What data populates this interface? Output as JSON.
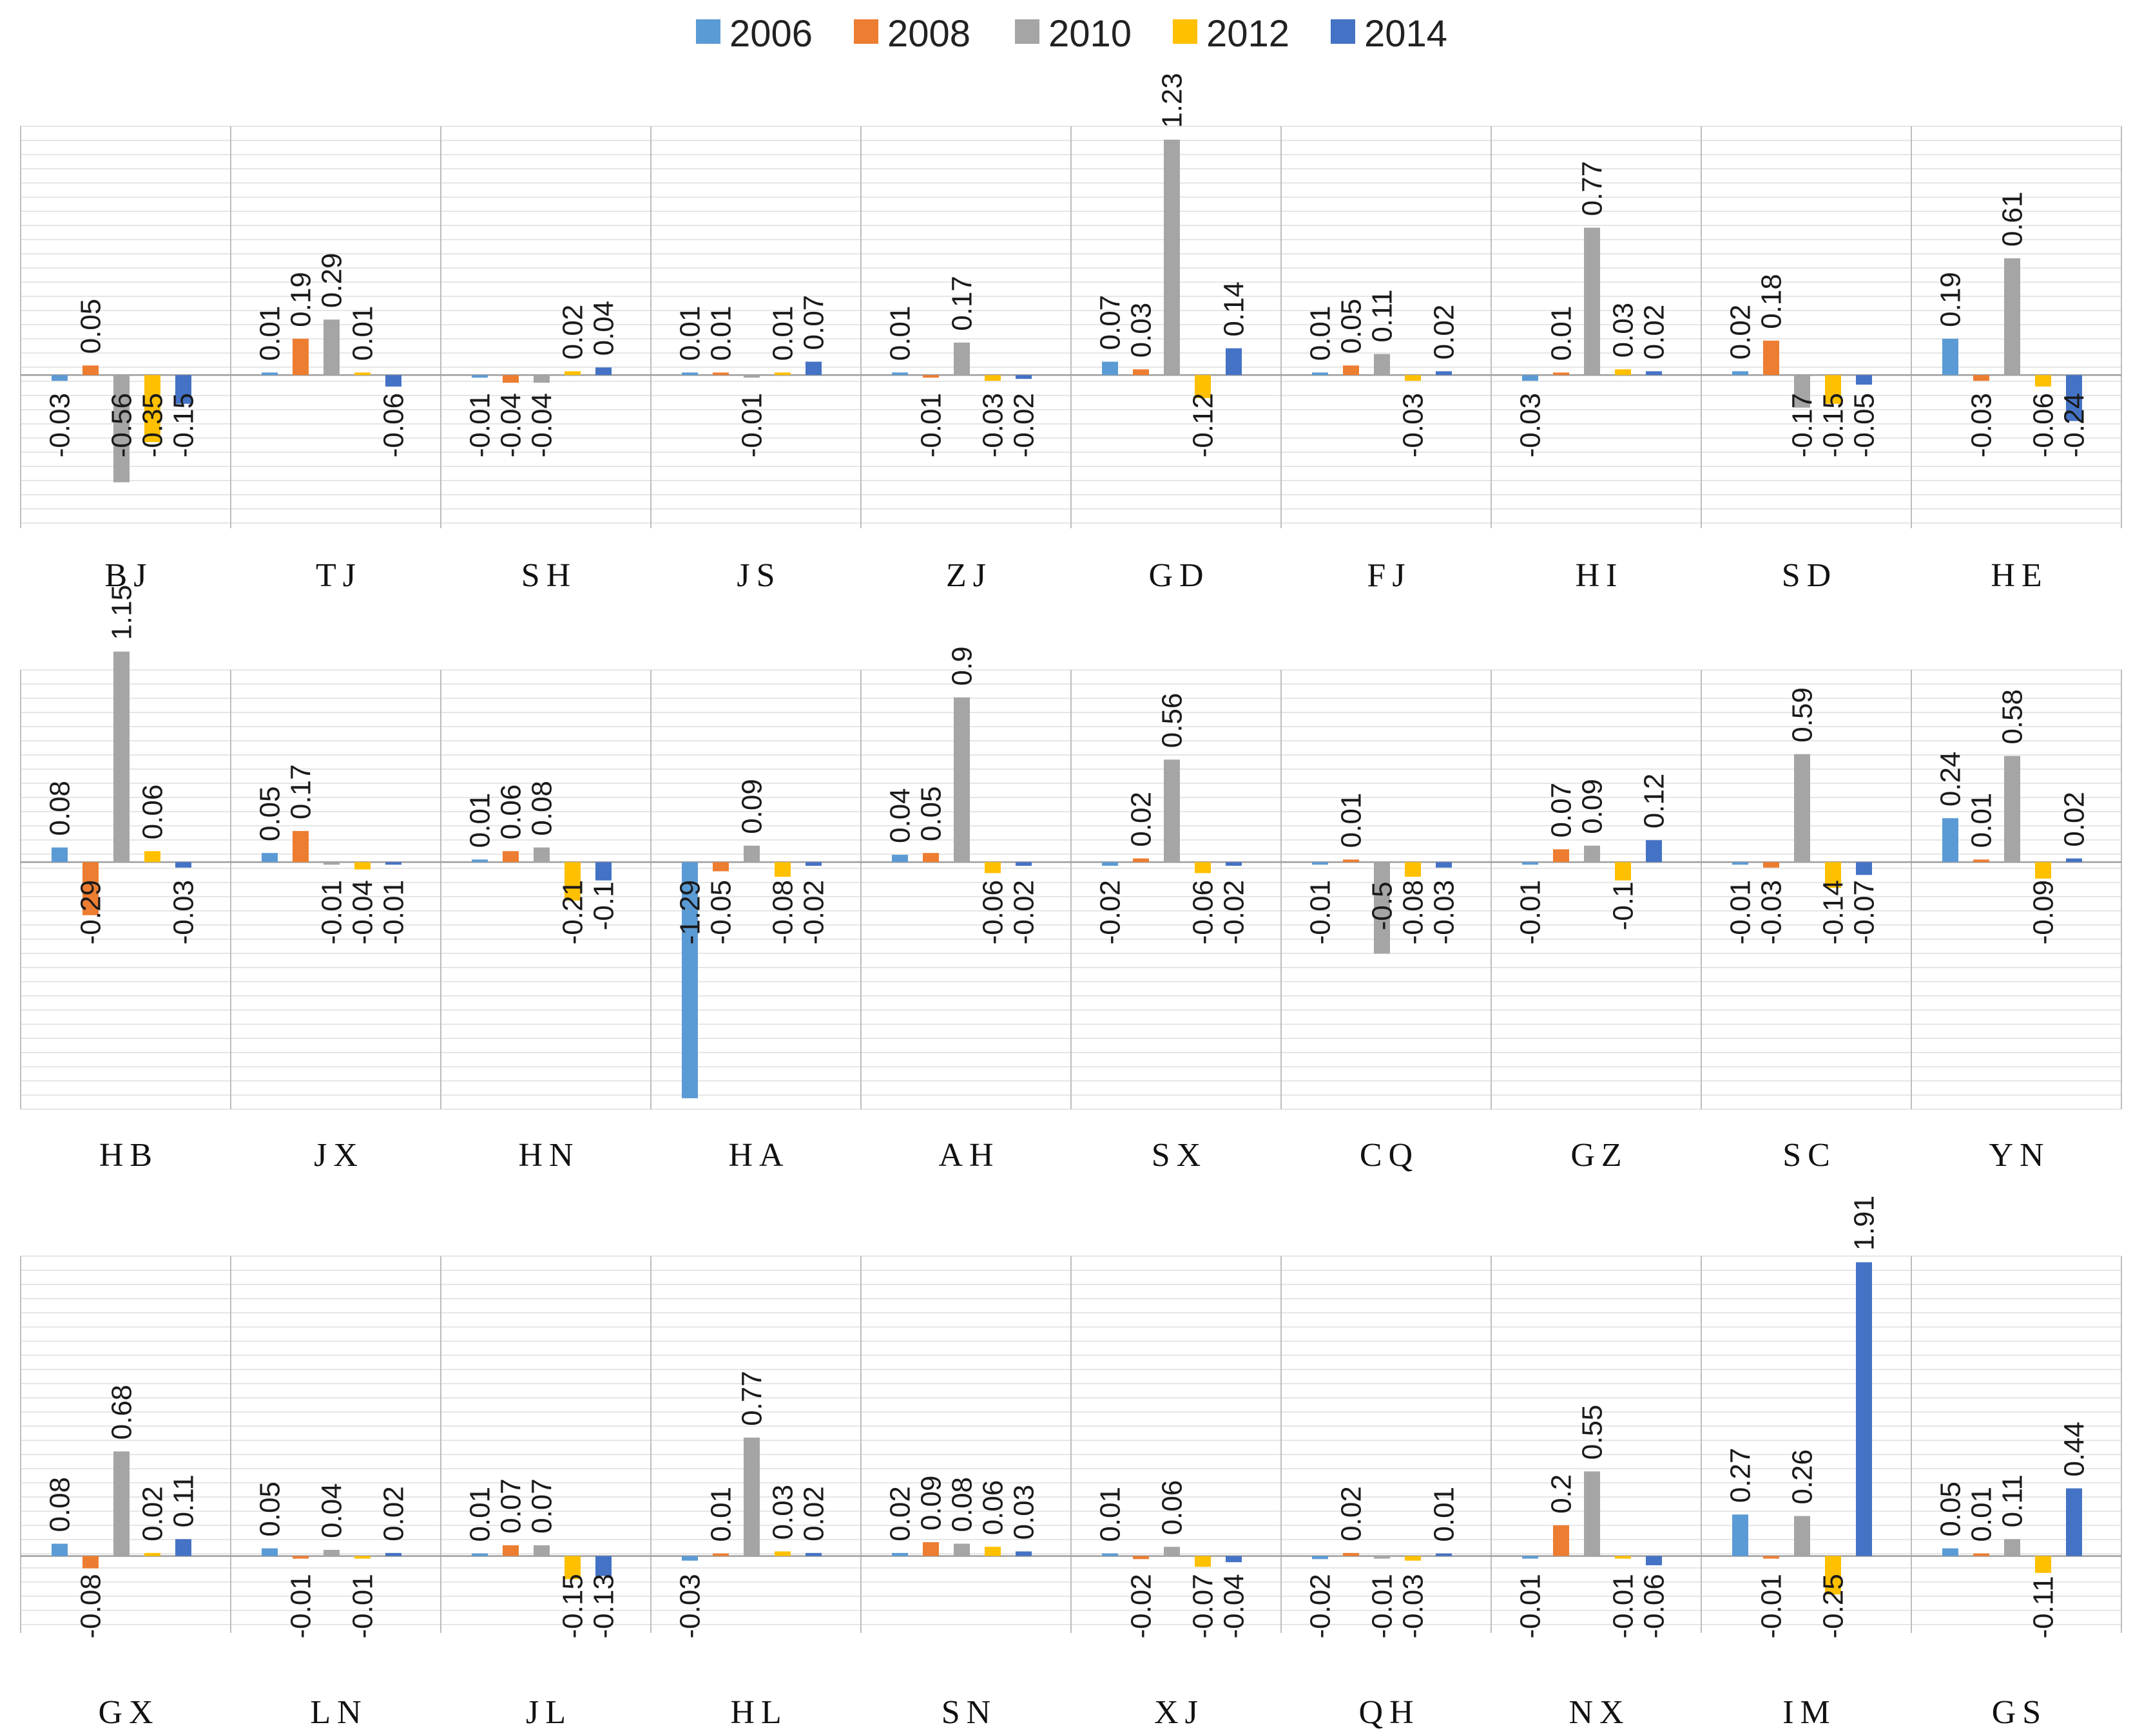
{
  "chart_data": {
    "type": "bar",
    "title": "",
    "xlabel": "",
    "ylabel": "",
    "grid": true,
    "legend_position": "top-center",
    "series": [
      {
        "name": "2006",
        "color": "#5B9BD5"
      },
      {
        "name": "2008",
        "color": "#ED7D31"
      },
      {
        "name": "2010",
        "color": "#A5A5A5"
      },
      {
        "name": "2012",
        "color": "#FFC000"
      },
      {
        "name": "2014",
        "color": "#4472C4"
      }
    ],
    "rows": [
      {
        "ylim": [
          -0.8,
          1.3
        ],
        "panels": [
          {
            "label": "BJ",
            "values": [
              -0.03,
              0.05,
              -0.56,
              -0.35,
              -0.15
            ]
          },
          {
            "label": "TJ",
            "values": [
              0.01,
              0.19,
              0.29,
              0.01,
              -0.06
            ]
          },
          {
            "label": "SH",
            "values": [
              -0.01,
              -0.04,
              -0.04,
              0.02,
              0.04
            ]
          },
          {
            "label": "JS",
            "values": [
              0.01,
              0.01,
              -0.01,
              0.01,
              0.07
            ]
          },
          {
            "label": "ZJ",
            "values": [
              0.01,
              -0.01,
              0.17,
              -0.03,
              -0.02
            ]
          },
          {
            "label": "GD",
            "values": [
              0.07,
              0.03,
              1.23,
              -0.12,
              0.14
            ]
          },
          {
            "label": "FJ",
            "values": [
              0.01,
              0.05,
              0.11,
              -0.03,
              0.02
            ]
          },
          {
            "label": "HI",
            "values": [
              -0.03,
              0.01,
              0.77,
              0.03,
              0.02
            ]
          },
          {
            "label": "SD",
            "values": [
              0.02,
              0.18,
              -0.17,
              -0.15,
              -0.05
            ]
          },
          {
            "label": "HE",
            "values": [
              0.19,
              -0.03,
              0.61,
              -0.06,
              -0.24
            ]
          }
        ]
      },
      {
        "ylim": [
          -1.35,
          1.05
        ],
        "panels": [
          {
            "label": "HB",
            "values": [
              0.08,
              -0.29,
              1.15,
              0.06,
              -0.03
            ]
          },
          {
            "label": "JX",
            "values": [
              0.05,
              0.17,
              -0.01,
              -0.04,
              -0.01
            ]
          },
          {
            "label": "HN",
            "values": [
              0.01,
              0.06,
              0.08,
              -0.21,
              -0.1
            ]
          },
          {
            "label": "HA",
            "values": [
              -1.29,
              -0.05,
              0.09,
              -0.08,
              -0.02
            ]
          },
          {
            "label": "AH",
            "values": [
              0.04,
              0.05,
              0.9,
              -0.06,
              -0.02
            ]
          },
          {
            "label": "SX",
            "values": [
              -0.02,
              0.02,
              0.56,
              -0.06,
              -0.02
            ]
          },
          {
            "label": "CQ",
            "values": [
              -0.01,
              0.01,
              -0.5,
              -0.08,
              -0.03
            ]
          },
          {
            "label": "GZ",
            "values": [
              -0.01,
              0.07,
              0.09,
              -0.1,
              0.12
            ]
          },
          {
            "label": "SC",
            "values": [
              -0.01,
              -0.03,
              0.59,
              -0.14,
              -0.07
            ]
          },
          {
            "label": "YN",
            "values": [
              0.24,
              0.01,
              0.58,
              -0.09,
              0.02
            ]
          }
        ]
      },
      {
        "ylim": [
          -0.5,
          1.95
        ],
        "panels": [
          {
            "label": "GX",
            "values": [
              0.08,
              -0.08,
              0.68,
              0.02,
              0.11
            ]
          },
          {
            "label": "LN",
            "values": [
              0.05,
              -0.01,
              0.04,
              -0.01,
              0.02
            ]
          },
          {
            "label": "JL",
            "values": [
              0.01,
              0.07,
              0.07,
              -0.15,
              -0.13
            ]
          },
          {
            "label": "HL",
            "values": [
              -0.03,
              0.01,
              0.77,
              0.03,
              0.02
            ]
          },
          {
            "label": "SN",
            "values": [
              0.02,
              0.09,
              0.08,
              0.06,
              0.03
            ]
          },
          {
            "label": "XJ",
            "values": [
              0.01,
              -0.02,
              0.06,
              -0.07,
              -0.04
            ]
          },
          {
            "label": "QH",
            "values": [
              -0.02,
              0.02,
              -0.01,
              -0.03,
              0.01
            ]
          },
          {
            "label": "NX",
            "values": [
              -0.01,
              0.2,
              0.55,
              -0.01,
              -0.06
            ]
          },
          {
            "label": "IM",
            "values": [
              0.27,
              -0.01,
              0.26,
              -0.25,
              1.91
            ]
          },
          {
            "label": "GS",
            "values": [
              0.05,
              0.01,
              0.11,
              -0.11,
              0.44
            ]
          }
        ]
      }
    ]
  }
}
